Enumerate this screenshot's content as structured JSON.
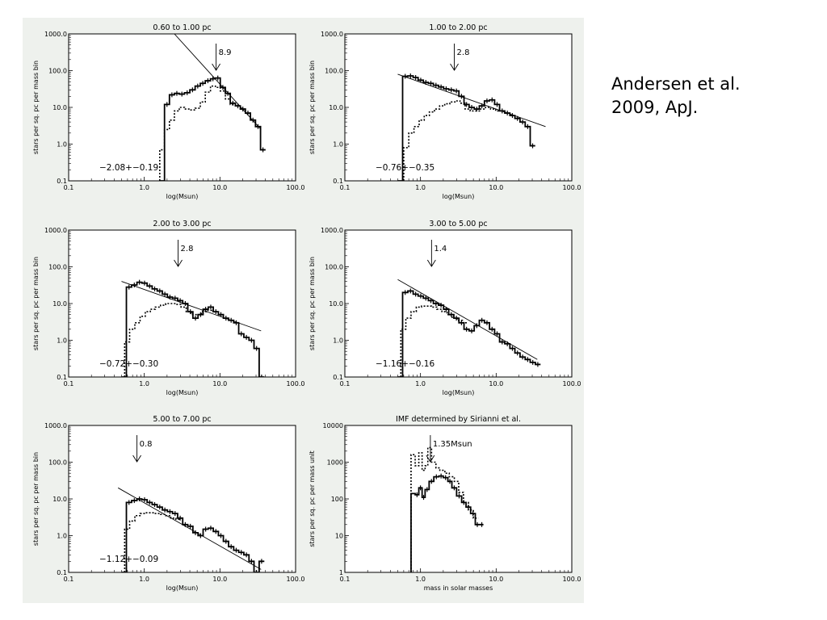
{
  "citation": {
    "line1": "Andersen et al.",
    "line2": "2009, ApJ."
  },
  "chart_data": [
    {
      "type": "line",
      "title": "0.60 to 1.00 pc",
      "xlabel": "log(Msun)",
      "ylabel": "stars per sq. pc per mass bin",
      "xscale": "log",
      "yscale": "log",
      "xlim": [
        0.1,
        100.0
      ],
      "ylim": [
        0.1,
        1000.0
      ],
      "xticks": [
        "0.1",
        "1.0",
        "10.0",
        "100.0"
      ],
      "yticks": [
        "0.1",
        "1.0",
        "10.0",
        "100.0",
        "1000.0"
      ],
      "arrow": {
        "label": "8.9",
        "x": 8.9
      },
      "fit_label": "−2.08+−0.19",
      "fit_line": [
        [
          2.5,
          1000
        ],
        [
          35,
          2.5
        ]
      ],
      "series": [
        {
          "style": "solid",
          "x": [
            1.6,
            1.85,
            2.15,
            2.5,
            2.9,
            3.4,
            4.0,
            4.7,
            5.5,
            6.4,
            7.5,
            8.7,
            10.1,
            11.8,
            13.7,
            16.0,
            18.6,
            21.7,
            25.3,
            29.5,
            34.4
          ],
          "y": [
            0.1,
            12,
            22,
            24,
            23,
            25,
            30,
            38,
            45,
            53,
            60,
            63,
            35,
            24,
            13,
            11,
            9,
            7,
            4.5,
            3,
            0.7
          ]
        },
        {
          "style": "dotted",
          "x": [
            1.6,
            1.85,
            2.15,
            2.5,
            2.9,
            3.4,
            4.0,
            4.7,
            5.5,
            6.4,
            7.5,
            8.7,
            10.1,
            11.8,
            13.7,
            16.0
          ],
          "y": [
            0.7,
            2.5,
            4.5,
            8,
            10,
            9,
            8.5,
            9.5,
            14,
            26,
            38,
            35,
            28,
            17,
            12,
            11
          ]
        }
      ]
    },
    {
      "type": "line",
      "title": "1.00 to 2.00 pc",
      "xlabel": "log(Msun)",
      "ylabel": "stars per sq. pc per mass bin",
      "xscale": "log",
      "yscale": "log",
      "xlim": [
        0.1,
        100.0
      ],
      "ylim": [
        0.1,
        1000.0
      ],
      "xticks": [
        "0.1",
        "1.0",
        "10.0",
        "100.0"
      ],
      "yticks": [
        "0.1",
        "1.0",
        "10.0",
        "100.0",
        "1000.0"
      ],
      "arrow": {
        "label": "2.8",
        "x": 2.8
      },
      "fit_label": "−0.76+−0.35",
      "fit_line": [
        [
          0.5,
          80
        ],
        [
          45,
          3
        ]
      ],
      "series": [
        {
          "style": "solid",
          "x": [
            0.5,
            0.58,
            0.68,
            0.8,
            0.93,
            1.09,
            1.27,
            1.48,
            1.73,
            2.02,
            2.36,
            2.76,
            3.22,
            3.76,
            4.39,
            5.13,
            5.99,
            7.0,
            8.17,
            9.54,
            11.1,
            13.0,
            15.2,
            17.7,
            20.7,
            24.2,
            28.2
          ],
          "y": [
            0.1,
            70,
            72,
            65,
            55,
            48,
            45,
            40,
            36,
            32,
            30,
            28,
            20,
            12,
            10,
            9,
            11,
            15,
            16,
            12,
            8,
            7,
            6,
            5,
            4,
            3,
            0.9
          ]
        },
        {
          "style": "dotted",
          "x": [
            0.6,
            0.7,
            0.82,
            0.96,
            1.12,
            1.31,
            1.53,
            1.79,
            2.09,
            2.44,
            2.85,
            3.33,
            3.89,
            4.54,
            5.3,
            6.19,
            7.23,
            8.44,
            9.86
          ],
          "y": [
            0.8,
            2,
            3,
            4.5,
            6,
            7.5,
            9,
            11,
            12.5,
            14,
            15,
            13,
            9,
            8,
            8,
            9,
            10,
            9,
            8
          ]
        }
      ]
    },
    {
      "type": "line",
      "title": "2.00 to 3.00 pc",
      "xlabel": "log(Msun)",
      "ylabel": "stars per sq. pc per mass bin",
      "xscale": "log",
      "yscale": "log",
      "xlim": [
        0.1,
        100.0
      ],
      "ylim": [
        0.1,
        1000.0
      ],
      "xticks": [
        "0.1",
        "1.0",
        "10.0",
        "100.0"
      ],
      "yticks": [
        "0.1",
        "1.0",
        "10.0",
        "100.0",
        "1000.0"
      ],
      "arrow": {
        "label": "2.8",
        "x": 2.8
      },
      "fit_label": "−0.72+−0.30",
      "fit_line": [
        [
          0.5,
          40
        ],
        [
          35,
          1.8
        ]
      ],
      "series": [
        {
          "style": "solid",
          "x": [
            0.5,
            0.58,
            0.68,
            0.8,
            0.93,
            1.09,
            1.27,
            1.48,
            1.73,
            2.02,
            2.36,
            2.76,
            3.22,
            3.76,
            4.39,
            5.13,
            5.99,
            7.0,
            8.17,
            9.54,
            11.1,
            13.0,
            15.2,
            17.7,
            20.7,
            24.2,
            28.2,
            33.0
          ],
          "y": [
            0.1,
            28,
            32,
            38,
            36,
            30,
            25,
            22,
            18,
            15,
            14,
            12,
            10,
            6,
            4,
            5,
            7,
            8,
            6,
            5,
            4,
            3.5,
            3,
            1.5,
            1.2,
            1,
            0.6,
            0.1
          ]
        },
        {
          "style": "dotted",
          "x": [
            0.55,
            0.64,
            0.75,
            0.88,
            1.03,
            1.2,
            1.4,
            1.64,
            1.92,
            2.24,
            2.62,
            3.06,
            3.58,
            4.18,
            4.88,
            5.7,
            6.66,
            7.78
          ],
          "y": [
            0.9,
            2,
            3,
            4.5,
            6,
            7,
            8,
            9,
            10,
            10,
            9.5,
            8,
            6,
            5,
            5,
            6,
            6.5,
            6
          ]
        }
      ]
    },
    {
      "type": "line",
      "title": "3.00 to 5.00 pc",
      "xlabel": "log(Msun)",
      "ylabel": "stars per sq. pc per mass bin",
      "xscale": "log",
      "yscale": "log",
      "xlim": [
        0.1,
        100.0
      ],
      "ylim": [
        0.1,
        1000.0
      ],
      "xticks": [
        "0.1",
        "1.0",
        "10.0",
        "100.0"
      ],
      "yticks": [
        "0.1",
        "1.0",
        "10.0",
        "100.0",
        "1000.0"
      ],
      "arrow": {
        "label": "1.4",
        "x": 1.4
      },
      "fit_label": "−1.16+−0.16",
      "fit_line": [
        [
          0.5,
          45
        ],
        [
          35,
          0.3
        ]
      ],
      "series": [
        {
          "style": "solid",
          "x": [
            0.5,
            0.58,
            0.68,
            0.8,
            0.93,
            1.09,
            1.27,
            1.48,
            1.73,
            2.02,
            2.36,
            2.76,
            3.22,
            3.76,
            4.39,
            5.13,
            5.99,
            7.0,
            8.17,
            9.54,
            11.1,
            13.0,
            15.2,
            17.7,
            20.7,
            24.2,
            28.2,
            33.0
          ],
          "y": [
            0.1,
            20,
            22,
            18,
            16,
            14,
            12,
            10,
            9,
            7,
            5,
            4,
            3,
            2,
            1.8,
            2.5,
            3.5,
            3,
            2,
            1.5,
            0.9,
            0.8,
            0.6,
            0.45,
            0.35,
            0.3,
            0.25,
            0.22
          ]
        },
        {
          "style": "dotted",
          "x": [
            0.55,
            0.64,
            0.75,
            0.88,
            1.03,
            1.2,
            1.4,
            1.64,
            1.92,
            2.24,
            2.62,
            3.06,
            3.58
          ],
          "y": [
            2,
            4,
            6,
            8,
            8.5,
            8.5,
            8,
            7,
            6,
            5,
            4,
            3.5,
            3
          ]
        }
      ]
    },
    {
      "type": "line",
      "title": "5.00 to 7.00 pc",
      "xlabel": "log(Msun)",
      "ylabel": "stars per sq. pc per mass bin",
      "xscale": "log",
      "yscale": "log",
      "xlim": [
        0.1,
        100.0
      ],
      "ylim": [
        0.1,
        1000.0
      ],
      "xticks": [
        "0.1",
        "1.0",
        "10.0",
        "100.0"
      ],
      "yticks": [
        "0.1",
        "1.0",
        "10.0",
        "100.0",
        "1000.0"
      ],
      "arrow": {
        "label": "0.8",
        "x": 0.8
      },
      "fit_label": "−1.12+−0.09",
      "fit_line": [
        [
          0.45,
          20
        ],
        [
          35,
          0.12
        ]
      ],
      "series": [
        {
          "style": "solid",
          "x": [
            0.5,
            0.58,
            0.68,
            0.8,
            0.93,
            1.09,
            1.27,
            1.48,
            1.73,
            2.02,
            2.36,
            2.76,
            3.22,
            3.76,
            4.39,
            5.13,
            5.99,
            7.0,
            8.17,
            9.54,
            11.1,
            13.0,
            15.2,
            17.7,
            20.7,
            24.2,
            28.2,
            33.0
          ],
          "y": [
            0.1,
            8,
            9,
            10,
            9.5,
            8,
            7,
            6,
            5,
            4.5,
            4,
            3,
            2,
            1.8,
            1.2,
            1,
            1.5,
            1.6,
            1.3,
            1,
            0.7,
            0.5,
            0.4,
            0.35,
            0.3,
            0.2,
            0.1,
            0.2
          ]
        },
        {
          "style": "dotted",
          "x": [
            0.55,
            0.64,
            0.75,
            0.88,
            1.03,
            1.2,
            1.4,
            1.64,
            1.92,
            2.24,
            2.62
          ],
          "y": [
            1.5,
            2.5,
            3.5,
            4,
            4.2,
            4.2,
            4,
            3.8,
            3.5,
            3,
            2.8
          ]
        }
      ]
    },
    {
      "type": "line",
      "title": "IMF determined by Sirianni et al.",
      "xlabel": "mass in solar masses",
      "ylabel": "stars per sq. pc per mass unit",
      "xscale": "log",
      "yscale": "log",
      "xlim": [
        0.1,
        100.0
      ],
      "ylim": [
        1,
        10000
      ],
      "xticks": [
        "0.1",
        "1.0",
        "10.0",
        "100.0"
      ],
      "yticks": [
        "1",
        "10",
        "100",
        "1000",
        "10000"
      ],
      "arrow": {
        "label": "1.35Msun",
        "x": 1.35
      },
      "fit_label": "",
      "fit_line": [],
      "series": [
        {
          "style": "solid",
          "x": [
            0.75,
            0.85,
            0.95,
            1.05,
            1.15,
            1.3,
            1.5,
            1.75,
            2.0,
            2.3,
            2.6,
            3.0,
            3.5,
            4.0,
            4.6,
            5.3,
            6.0
          ],
          "y": [
            140,
            130,
            200,
            110,
            180,
            300,
            400,
            420,
            380,
            300,
            200,
            120,
            80,
            60,
            40,
            20,
            20
          ]
        },
        {
          "style": "dotted",
          "x": [
            0.75,
            0.85,
            0.95,
            1.05,
            1.15,
            1.25,
            1.4,
            1.6,
            1.8,
            2.1,
            2.4,
            2.8,
            3.2,
            3.7,
            4.3,
            5.0
          ],
          "y": [
            1600,
            800,
            1800,
            600,
            800,
            2500,
            1000,
            700,
            600,
            500,
            400,
            300,
            150,
            80,
            50,
            30
          ]
        }
      ]
    }
  ]
}
